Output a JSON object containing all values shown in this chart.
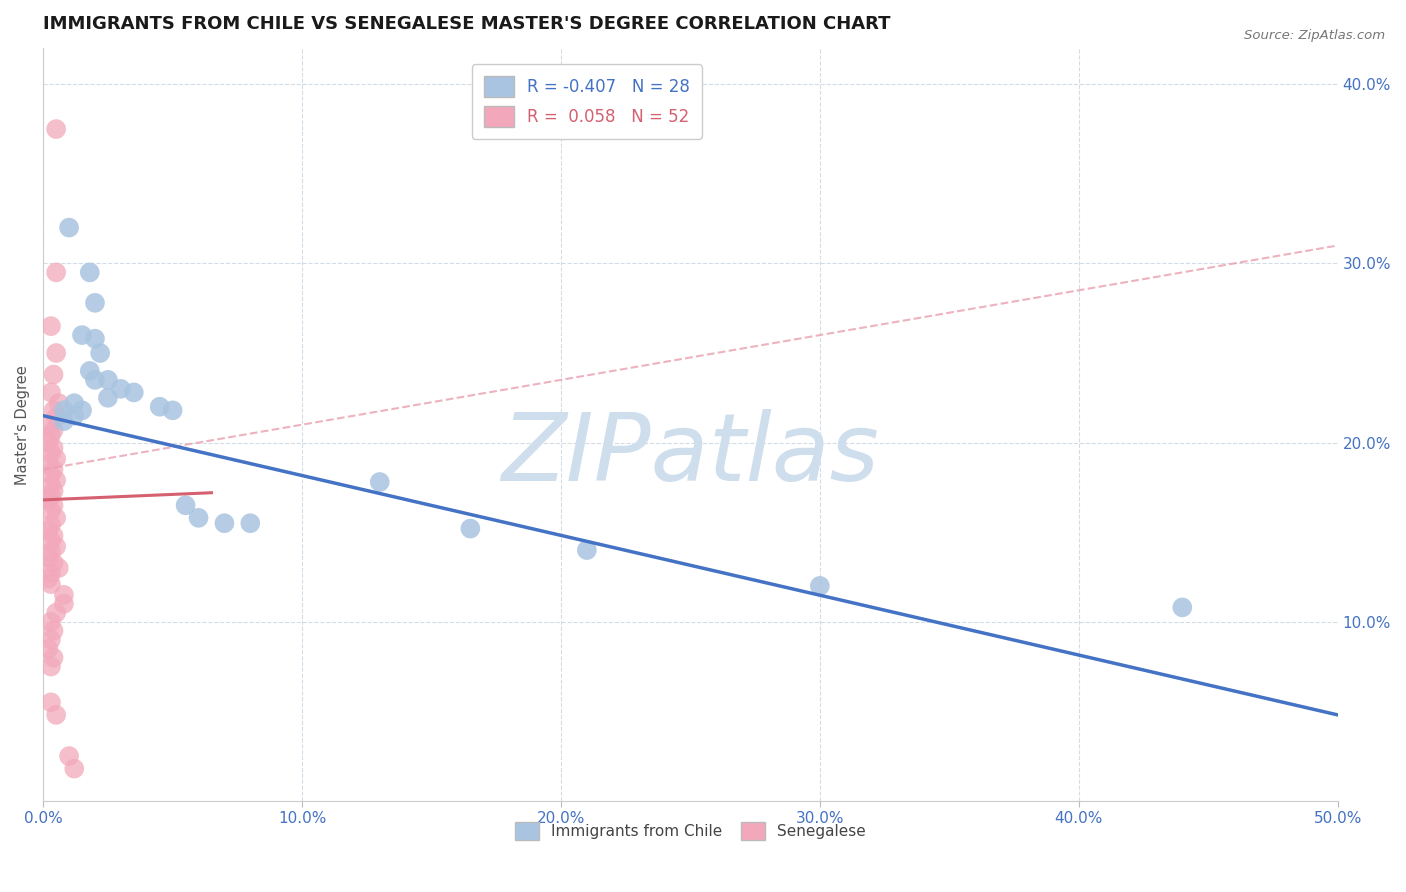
{
  "title": "IMMIGRANTS FROM CHILE VS SENEGALESE MASTER'S DEGREE CORRELATION CHART",
  "source": "Source: ZipAtlas.com",
  "ylabel": "Master's Degree",
  "xlim": [
    0.0,
    0.5
  ],
  "ylim": [
    0.0,
    0.42
  ],
  "xticks": [
    0.0,
    0.1,
    0.2,
    0.3,
    0.4,
    0.5
  ],
  "yticks": [
    0.0,
    0.1,
    0.2,
    0.3,
    0.4
  ],
  "xtick_labels": [
    "0.0%",
    "10.0%",
    "20.0%",
    "30.0%",
    "40.0%",
    "50.0%"
  ],
  "ytick_labels_right": [
    "",
    "10.0%",
    "20.0%",
    "30.0%",
    "40.0%"
  ],
  "legend_r_blue": "-0.407",
  "legend_n_blue": "28",
  "legend_r_pink": "0.058",
  "legend_n_pink": "52",
  "blue_color": "#a8c4e0",
  "pink_color": "#f2a8ba",
  "line_blue_color": "#4472c4",
  "line_pink_solid_color": "#d46070",
  "line_pink_dashed_color": "#e8a0b0",
  "blue_scatter": [
    [
      0.01,
      0.32
    ],
    [
      0.018,
      0.295
    ],
    [
      0.02,
      0.278
    ],
    [
      0.015,
      0.26
    ],
    [
      0.02,
      0.258
    ],
    [
      0.022,
      0.25
    ],
    [
      0.018,
      0.24
    ],
    [
      0.02,
      0.235
    ],
    [
      0.025,
      0.235
    ],
    [
      0.03,
      0.23
    ],
    [
      0.025,
      0.225
    ],
    [
      0.035,
      0.228
    ],
    [
      0.012,
      0.222
    ],
    [
      0.008,
      0.218
    ],
    [
      0.008,
      0.212
    ],
    [
      0.012,
      0.215
    ],
    [
      0.015,
      0.218
    ],
    [
      0.045,
      0.22
    ],
    [
      0.05,
      0.218
    ],
    [
      0.055,
      0.165
    ],
    [
      0.06,
      0.158
    ],
    [
      0.07,
      0.155
    ],
    [
      0.08,
      0.155
    ],
    [
      0.13,
      0.178
    ],
    [
      0.165,
      0.152
    ],
    [
      0.21,
      0.14
    ],
    [
      0.3,
      0.12
    ],
    [
      0.44,
      0.108
    ]
  ],
  "pink_scatter": [
    [
      0.005,
      0.375
    ],
    [
      0.005,
      0.295
    ],
    [
      0.003,
      0.265
    ],
    [
      0.005,
      0.25
    ],
    [
      0.004,
      0.238
    ],
    [
      0.003,
      0.228
    ],
    [
      0.006,
      0.222
    ],
    [
      0.004,
      0.218
    ],
    [
      0.005,
      0.214
    ],
    [
      0.003,
      0.21
    ],
    [
      0.004,
      0.207
    ],
    [
      0.003,
      0.204
    ],
    [
      0.002,
      0.2
    ],
    [
      0.004,
      0.197
    ],
    [
      0.003,
      0.194
    ],
    [
      0.005,
      0.191
    ],
    [
      0.002,
      0.188
    ],
    [
      0.004,
      0.185
    ],
    [
      0.003,
      0.182
    ],
    [
      0.005,
      0.179
    ],
    [
      0.003,
      0.176
    ],
    [
      0.004,
      0.173
    ],
    [
      0.003,
      0.17
    ],
    [
      0.002,
      0.168
    ],
    [
      0.004,
      0.165
    ],
    [
      0.003,
      0.162
    ],
    [
      0.005,
      0.158
    ],
    [
      0.003,
      0.154
    ],
    [
      0.002,
      0.151
    ],
    [
      0.004,
      0.148
    ],
    [
      0.003,
      0.145
    ],
    [
      0.005,
      0.142
    ],
    [
      0.003,
      0.139
    ],
    [
      0.002,
      0.136
    ],
    [
      0.004,
      0.133
    ],
    [
      0.006,
      0.13
    ],
    [
      0.003,
      0.127
    ],
    [
      0.002,
      0.124
    ],
    [
      0.003,
      0.121
    ],
    [
      0.008,
      0.115
    ],
    [
      0.008,
      0.11
    ],
    [
      0.005,
      0.105
    ],
    [
      0.003,
      0.1
    ],
    [
      0.004,
      0.095
    ],
    [
      0.003,
      0.09
    ],
    [
      0.002,
      0.085
    ],
    [
      0.004,
      0.08
    ],
    [
      0.003,
      0.075
    ],
    [
      0.003,
      0.055
    ],
    [
      0.005,
      0.048
    ],
    [
      0.01,
      0.025
    ],
    [
      0.012,
      0.018
    ]
  ],
  "blue_line_x": [
    0.0,
    0.5
  ],
  "blue_line_y": [
    0.215,
    0.048
  ],
  "pink_solid_line_x": [
    0.0,
    0.065
  ],
  "pink_solid_line_y": [
    0.168,
    0.172
  ],
  "pink_dashed_line_x": [
    0.0,
    0.5
  ],
  "pink_dashed_line_y": [
    0.185,
    0.31
  ],
  "watermark_text": "ZIPatlas",
  "watermark_color": "#cfdeed",
  "background_color": "#ffffff",
  "title_fontsize": 13,
  "tick_label_color": "#4472c4",
  "grid_color": "#c8d4e0",
  "source_color": "#777777"
}
